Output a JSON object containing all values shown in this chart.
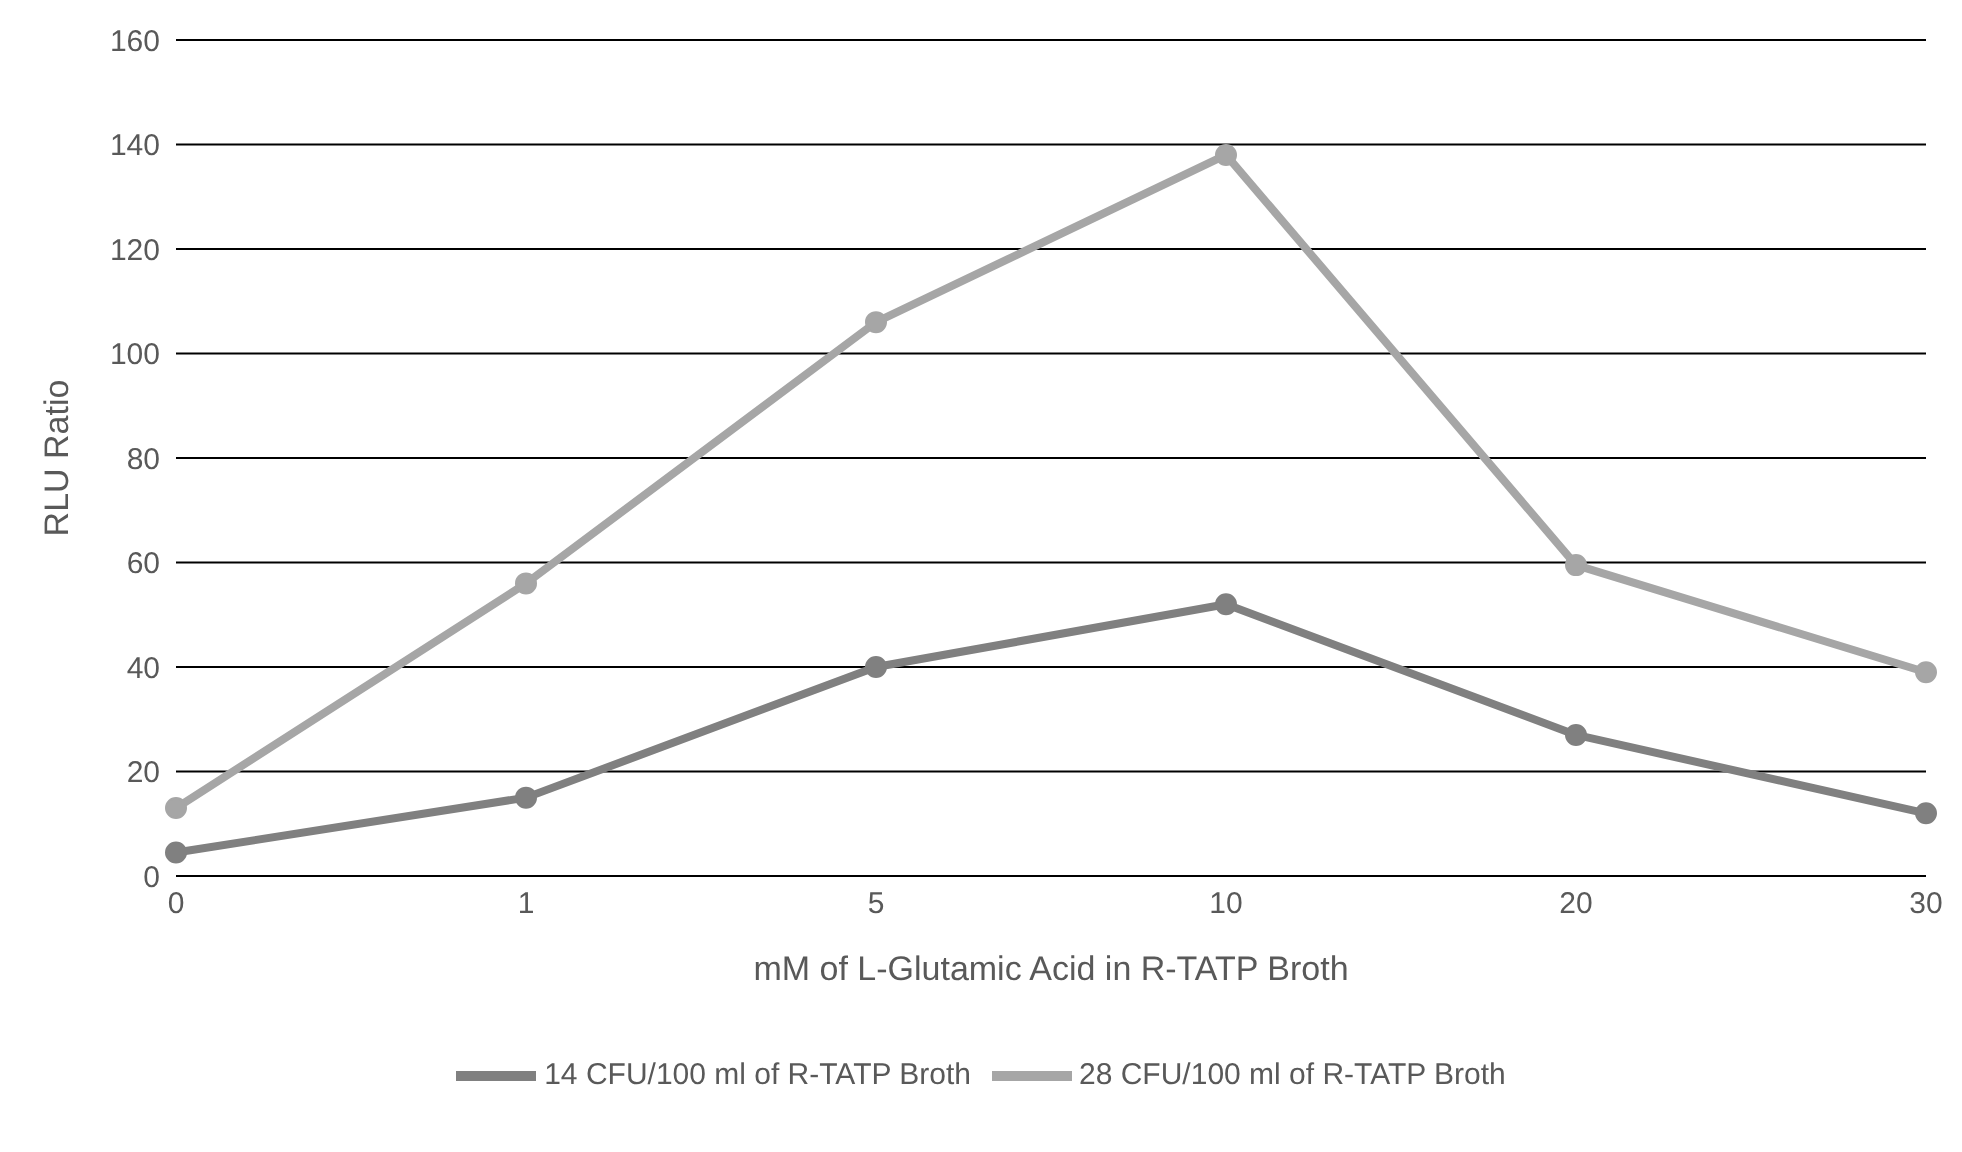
{
  "chart_data": {
    "type": "line",
    "xlabel": "mM of L-Glutamic Acid in R-TATP Broth",
    "ylabel": "RLU Ratio",
    "categories": [
      "0",
      "1",
      "5",
      "10",
      "20",
      "30"
    ],
    "series": [
      {
        "name": "14 CFU/100 ml of R-TATP Broth",
        "color": "#808080",
        "values": [
          4.5,
          15,
          40,
          52,
          27,
          12
        ]
      },
      {
        "name": "28 CFU/100 ml of R-TATP Broth",
        "color": "#a6a6a6",
        "values": [
          13,
          56,
          106,
          138,
          59.5,
          39
        ]
      }
    ],
    "ylim": [
      0,
      160
    ],
    "yticks": [
      0,
      20,
      40,
      60,
      80,
      100,
      120,
      140,
      160
    ],
    "grid": "y",
    "legend": "bottom",
    "marker": "circle",
    "line_style": "solid"
  }
}
